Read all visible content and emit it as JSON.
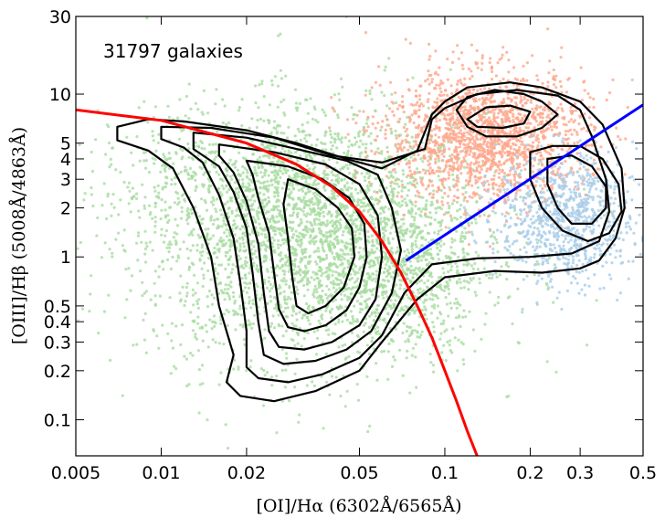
{
  "chart_data": {
    "type": "scatter",
    "annotation": "31797 galaxies",
    "xlabel": "[OI]/Hα  (6302Å/6565Å)",
    "ylabel": "[OIII]/Hβ  (5008Å/4863Å)",
    "xscale": "log",
    "yscale": "log",
    "xlim": [
      0.005,
      0.5
    ],
    "ylim": [
      0.06,
      30
    ],
    "xticks": [
      {
        "value": 0.005,
        "label": "0.005"
      },
      {
        "value": 0.01,
        "label": "0.01"
      },
      {
        "value": 0.02,
        "label": "0.02"
      },
      {
        "value": 0.05,
        "label": "0.05"
      },
      {
        "value": 0.1,
        "label": "0.1"
      },
      {
        "value": 0.2,
        "label": "0.2"
      },
      {
        "value": 0.3,
        "label": "0.3"
      },
      {
        "value": 0.5,
        "label": "0.5"
      }
    ],
    "yticks": [
      {
        "value": 0.1,
        "label": "0.1"
      },
      {
        "value": 0.2,
        "label": "0.2"
      },
      {
        "value": 0.3,
        "label": "0.3"
      },
      {
        "value": 0.4,
        "label": "0.4"
      },
      {
        "value": 0.5,
        "label": "0.5"
      },
      {
        "value": 1,
        "label": "1"
      },
      {
        "value": 2,
        "label": "2"
      },
      {
        "value": 3,
        "label": "3"
      },
      {
        "value": 4,
        "label": "4"
      },
      {
        "value": 5,
        "label": "5"
      },
      {
        "value": 10,
        "label": "10"
      },
      {
        "value": 30,
        "label": "30"
      }
    ],
    "grid": false,
    "point_groups": [
      {
        "color": "#a8dca0",
        "n": 3200,
        "cx": 0.035,
        "cy": 1.3,
        "sx": 0.3,
        "sy": 0.38
      },
      {
        "color": "#a8dca0",
        "n": 500,
        "cx": 0.02,
        "cy": 3.0,
        "sx": 0.3,
        "sy": 0.22
      },
      {
        "color": "#a8dca0",
        "n": 350,
        "cx": 0.075,
        "cy": 0.7,
        "sx": 0.12,
        "sy": 0.22
      },
      {
        "color": "#fca88c",
        "n": 1800,
        "cx": 0.14,
        "cy": 5.5,
        "sx": 0.18,
        "sy": 0.2
      },
      {
        "color": "#a9cde8",
        "n": 900,
        "cx": 0.27,
        "cy": 1.7,
        "sx": 0.12,
        "sy": 0.2
      }
    ],
    "contours": [
      [
        [
          0.007,
          6.3
        ],
        [
          0.009,
          7.0
        ],
        [
          0.012,
          6.8
        ],
        [
          0.02,
          6.0
        ],
        [
          0.03,
          5.0
        ],
        [
          0.045,
          4.0
        ],
        [
          0.06,
          3.5
        ],
        [
          0.08,
          4.5
        ],
        [
          0.09,
          7.5
        ],
        [
          0.1,
          9.0
        ],
        [
          0.12,
          11.0
        ],
        [
          0.17,
          11.8
        ],
        [
          0.22,
          11.0
        ],
        [
          0.3,
          9.0
        ],
        [
          0.36,
          6.5
        ],
        [
          0.42,
          3.5
        ],
        [
          0.43,
          2.0
        ],
        [
          0.4,
          1.3
        ],
        [
          0.35,
          0.95
        ],
        [
          0.3,
          0.85
        ],
        [
          0.22,
          0.8
        ],
        [
          0.15,
          0.82
        ],
        [
          0.1,
          0.75
        ],
        [
          0.08,
          0.55
        ],
        [
          0.06,
          0.3
        ],
        [
          0.05,
          0.2
        ],
        [
          0.035,
          0.15
        ],
        [
          0.025,
          0.13
        ],
        [
          0.019,
          0.14
        ],
        [
          0.017,
          0.17
        ],
        [
          0.018,
          0.25
        ],
        [
          0.016,
          0.5
        ],
        [
          0.015,
          1.0
        ],
        [
          0.013,
          2.0
        ],
        [
          0.011,
          3.5
        ],
        [
          0.009,
          4.5
        ],
        [
          0.007,
          5.2
        ],
        [
          0.007,
          6.3
        ]
      ],
      [
        [
          0.01,
          6.3
        ],
        [
          0.015,
          6.2
        ],
        [
          0.025,
          5.4
        ],
        [
          0.04,
          4.2
        ],
        [
          0.06,
          3.8
        ],
        [
          0.085,
          4.6
        ],
        [
          0.09,
          7.0
        ],
        [
          0.1,
          8.2
        ],
        [
          0.13,
          10.0
        ],
        [
          0.18,
          10.6
        ],
        [
          0.25,
          9.8
        ],
        [
          0.3,
          8.0
        ],
        [
          0.33,
          5.5
        ],
        [
          0.37,
          3.0
        ],
        [
          0.38,
          1.9
        ],
        [
          0.35,
          1.25
        ],
        [
          0.28,
          1.05
        ],
        [
          0.2,
          1.0
        ],
        [
          0.13,
          0.98
        ],
        [
          0.09,
          0.9
        ],
        [
          0.072,
          0.6
        ],
        [
          0.06,
          0.33
        ],
        [
          0.05,
          0.24
        ],
        [
          0.037,
          0.19
        ],
        [
          0.028,
          0.17
        ],
        [
          0.022,
          0.18
        ],
        [
          0.02,
          0.21
        ],
        [
          0.02,
          0.35
        ],
        [
          0.019,
          0.7
        ],
        [
          0.018,
          1.3
        ],
        [
          0.016,
          2.4
        ],
        [
          0.014,
          3.8
        ],
        [
          0.012,
          4.7
        ],
        [
          0.01,
          5.3
        ],
        [
          0.01,
          6.3
        ]
      ],
      [
        [
          0.013,
          5.8
        ],
        [
          0.02,
          5.4
        ],
        [
          0.03,
          4.6
        ],
        [
          0.045,
          3.9
        ],
        [
          0.058,
          3.2
        ],
        [
          0.065,
          2.0
        ],
        [
          0.07,
          1.1
        ],
        [
          0.065,
          0.6
        ],
        [
          0.055,
          0.35
        ],
        [
          0.045,
          0.27
        ],
        [
          0.035,
          0.23
        ],
        [
          0.027,
          0.22
        ],
        [
          0.023,
          0.25
        ],
        [
          0.022,
          0.4
        ],
        [
          0.021,
          0.8
        ],
        [
          0.02,
          1.5
        ],
        [
          0.018,
          2.5
        ],
        [
          0.016,
          3.6
        ],
        [
          0.013,
          4.6
        ],
        [
          0.013,
          5.8
        ]
      ],
      [
        [
          0.016,
          4.9
        ],
        [
          0.025,
          4.4
        ],
        [
          0.038,
          3.7
        ],
        [
          0.05,
          2.8
        ],
        [
          0.058,
          1.8
        ],
        [
          0.06,
          1.0
        ],
        [
          0.057,
          0.55
        ],
        [
          0.05,
          0.38
        ],
        [
          0.04,
          0.3
        ],
        [
          0.032,
          0.27
        ],
        [
          0.026,
          0.28
        ],
        [
          0.024,
          0.35
        ],
        [
          0.023,
          0.6
        ],
        [
          0.022,
          1.2
        ],
        [
          0.02,
          2.2
        ],
        [
          0.018,
          3.3
        ],
        [
          0.016,
          4.2
        ],
        [
          0.016,
          4.9
        ]
      ],
      [
        [
          0.02,
          3.9
        ],
        [
          0.028,
          3.6
        ],
        [
          0.037,
          3.0
        ],
        [
          0.046,
          2.3
        ],
        [
          0.052,
          1.6
        ],
        [
          0.053,
          1.0
        ],
        [
          0.05,
          0.65
        ],
        [
          0.045,
          0.47
        ],
        [
          0.038,
          0.38
        ],
        [
          0.032,
          0.35
        ],
        [
          0.028,
          0.37
        ],
        [
          0.026,
          0.48
        ],
        [
          0.025,
          0.8
        ],
        [
          0.024,
          1.4
        ],
        [
          0.022,
          2.3
        ],
        [
          0.021,
          3.2
        ],
        [
          0.02,
          3.9
        ]
      ],
      [
        [
          0.028,
          3.0
        ],
        [
          0.035,
          2.6
        ],
        [
          0.042,
          2.0
        ],
        [
          0.047,
          1.5
        ],
        [
          0.048,
          1.0
        ],
        [
          0.044,
          0.65
        ],
        [
          0.038,
          0.5
        ],
        [
          0.033,
          0.45
        ],
        [
          0.03,
          0.5
        ],
        [
          0.029,
          0.75
        ],
        [
          0.028,
          1.3
        ],
        [
          0.027,
          2.1
        ],
        [
          0.028,
          3.0
        ]
      ],
      [
        [
          0.11,
          8.0
        ],
        [
          0.12,
          9.6
        ],
        [
          0.15,
          10.6
        ],
        [
          0.19,
          10.0
        ],
        [
          0.22,
          9.0
        ],
        [
          0.25,
          7.5
        ],
        [
          0.22,
          6.2
        ],
        [
          0.18,
          5.5
        ],
        [
          0.14,
          5.5
        ],
        [
          0.12,
          6.3
        ],
        [
          0.11,
          8.0
        ]
      ],
      [
        [
          0.12,
          7.0
        ],
        [
          0.14,
          8.3
        ],
        [
          0.17,
          8.5
        ],
        [
          0.2,
          7.8
        ],
        [
          0.19,
          6.6
        ],
        [
          0.16,
          6.2
        ],
        [
          0.13,
          6.3
        ],
        [
          0.12,
          7.0
        ]
      ],
      [
        [
          0.2,
          4.4
        ],
        [
          0.24,
          4.8
        ],
        [
          0.3,
          4.8
        ],
        [
          0.36,
          4.0
        ],
        [
          0.41,
          2.8
        ],
        [
          0.42,
          1.9
        ],
        [
          0.38,
          1.4
        ],
        [
          0.32,
          1.25
        ],
        [
          0.26,
          1.45
        ],
        [
          0.22,
          2.0
        ],
        [
          0.2,
          3.0
        ],
        [
          0.2,
          4.4
        ]
      ],
      [
        [
          0.23,
          4.0
        ],
        [
          0.28,
          4.2
        ],
        [
          0.33,
          3.6
        ],
        [
          0.37,
          2.7
        ],
        [
          0.37,
          2.0
        ],
        [
          0.33,
          1.6
        ],
        [
          0.28,
          1.6
        ],
        [
          0.25,
          2.0
        ],
        [
          0.23,
          2.8
        ],
        [
          0.23,
          4.0
        ]
      ]
    ],
    "kauffmann_line": {
      "color": "#ff0000",
      "points": [
        [
          0.005,
          8.0
        ],
        [
          0.01,
          6.9
        ],
        [
          0.02,
          5.0
        ],
        [
          0.03,
          3.7
        ],
        [
          0.04,
          2.7
        ],
        [
          0.05,
          1.9
        ],
        [
          0.06,
          1.25
        ],
        [
          0.07,
          0.8
        ],
        [
          0.08,
          0.5
        ],
        [
          0.09,
          0.32
        ],
        [
          0.1,
          0.2
        ],
        [
          0.11,
          0.13
        ],
        [
          0.12,
          0.085
        ],
        [
          0.13,
          0.06
        ]
      ]
    },
    "seyfert_liner_line": {
      "color": "#0000ff",
      "points": [
        [
          0.073,
          0.95
        ],
        [
          0.5,
          8.6
        ]
      ]
    }
  }
}
